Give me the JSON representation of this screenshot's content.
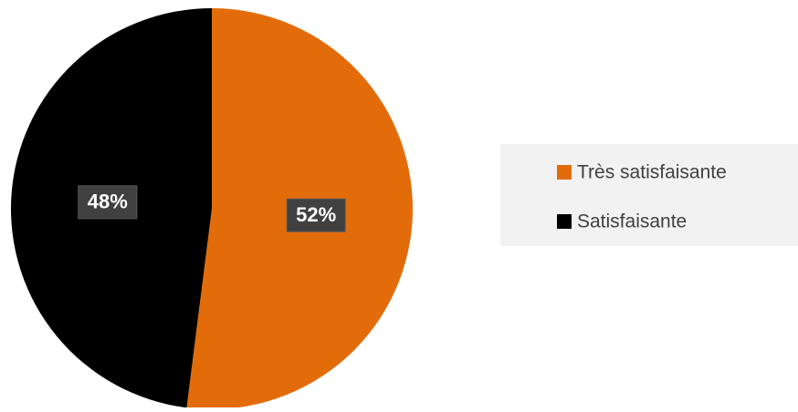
{
  "chart_data": {
    "type": "pie",
    "categories": [
      "Très satisfaisante",
      "Satisfaisante"
    ],
    "values": [
      52,
      48
    ],
    "value_labels": [
      "52%",
      "48%"
    ],
    "colors": [
      "#e36c0a",
      "#000000"
    ],
    "legend": "right"
  }
}
